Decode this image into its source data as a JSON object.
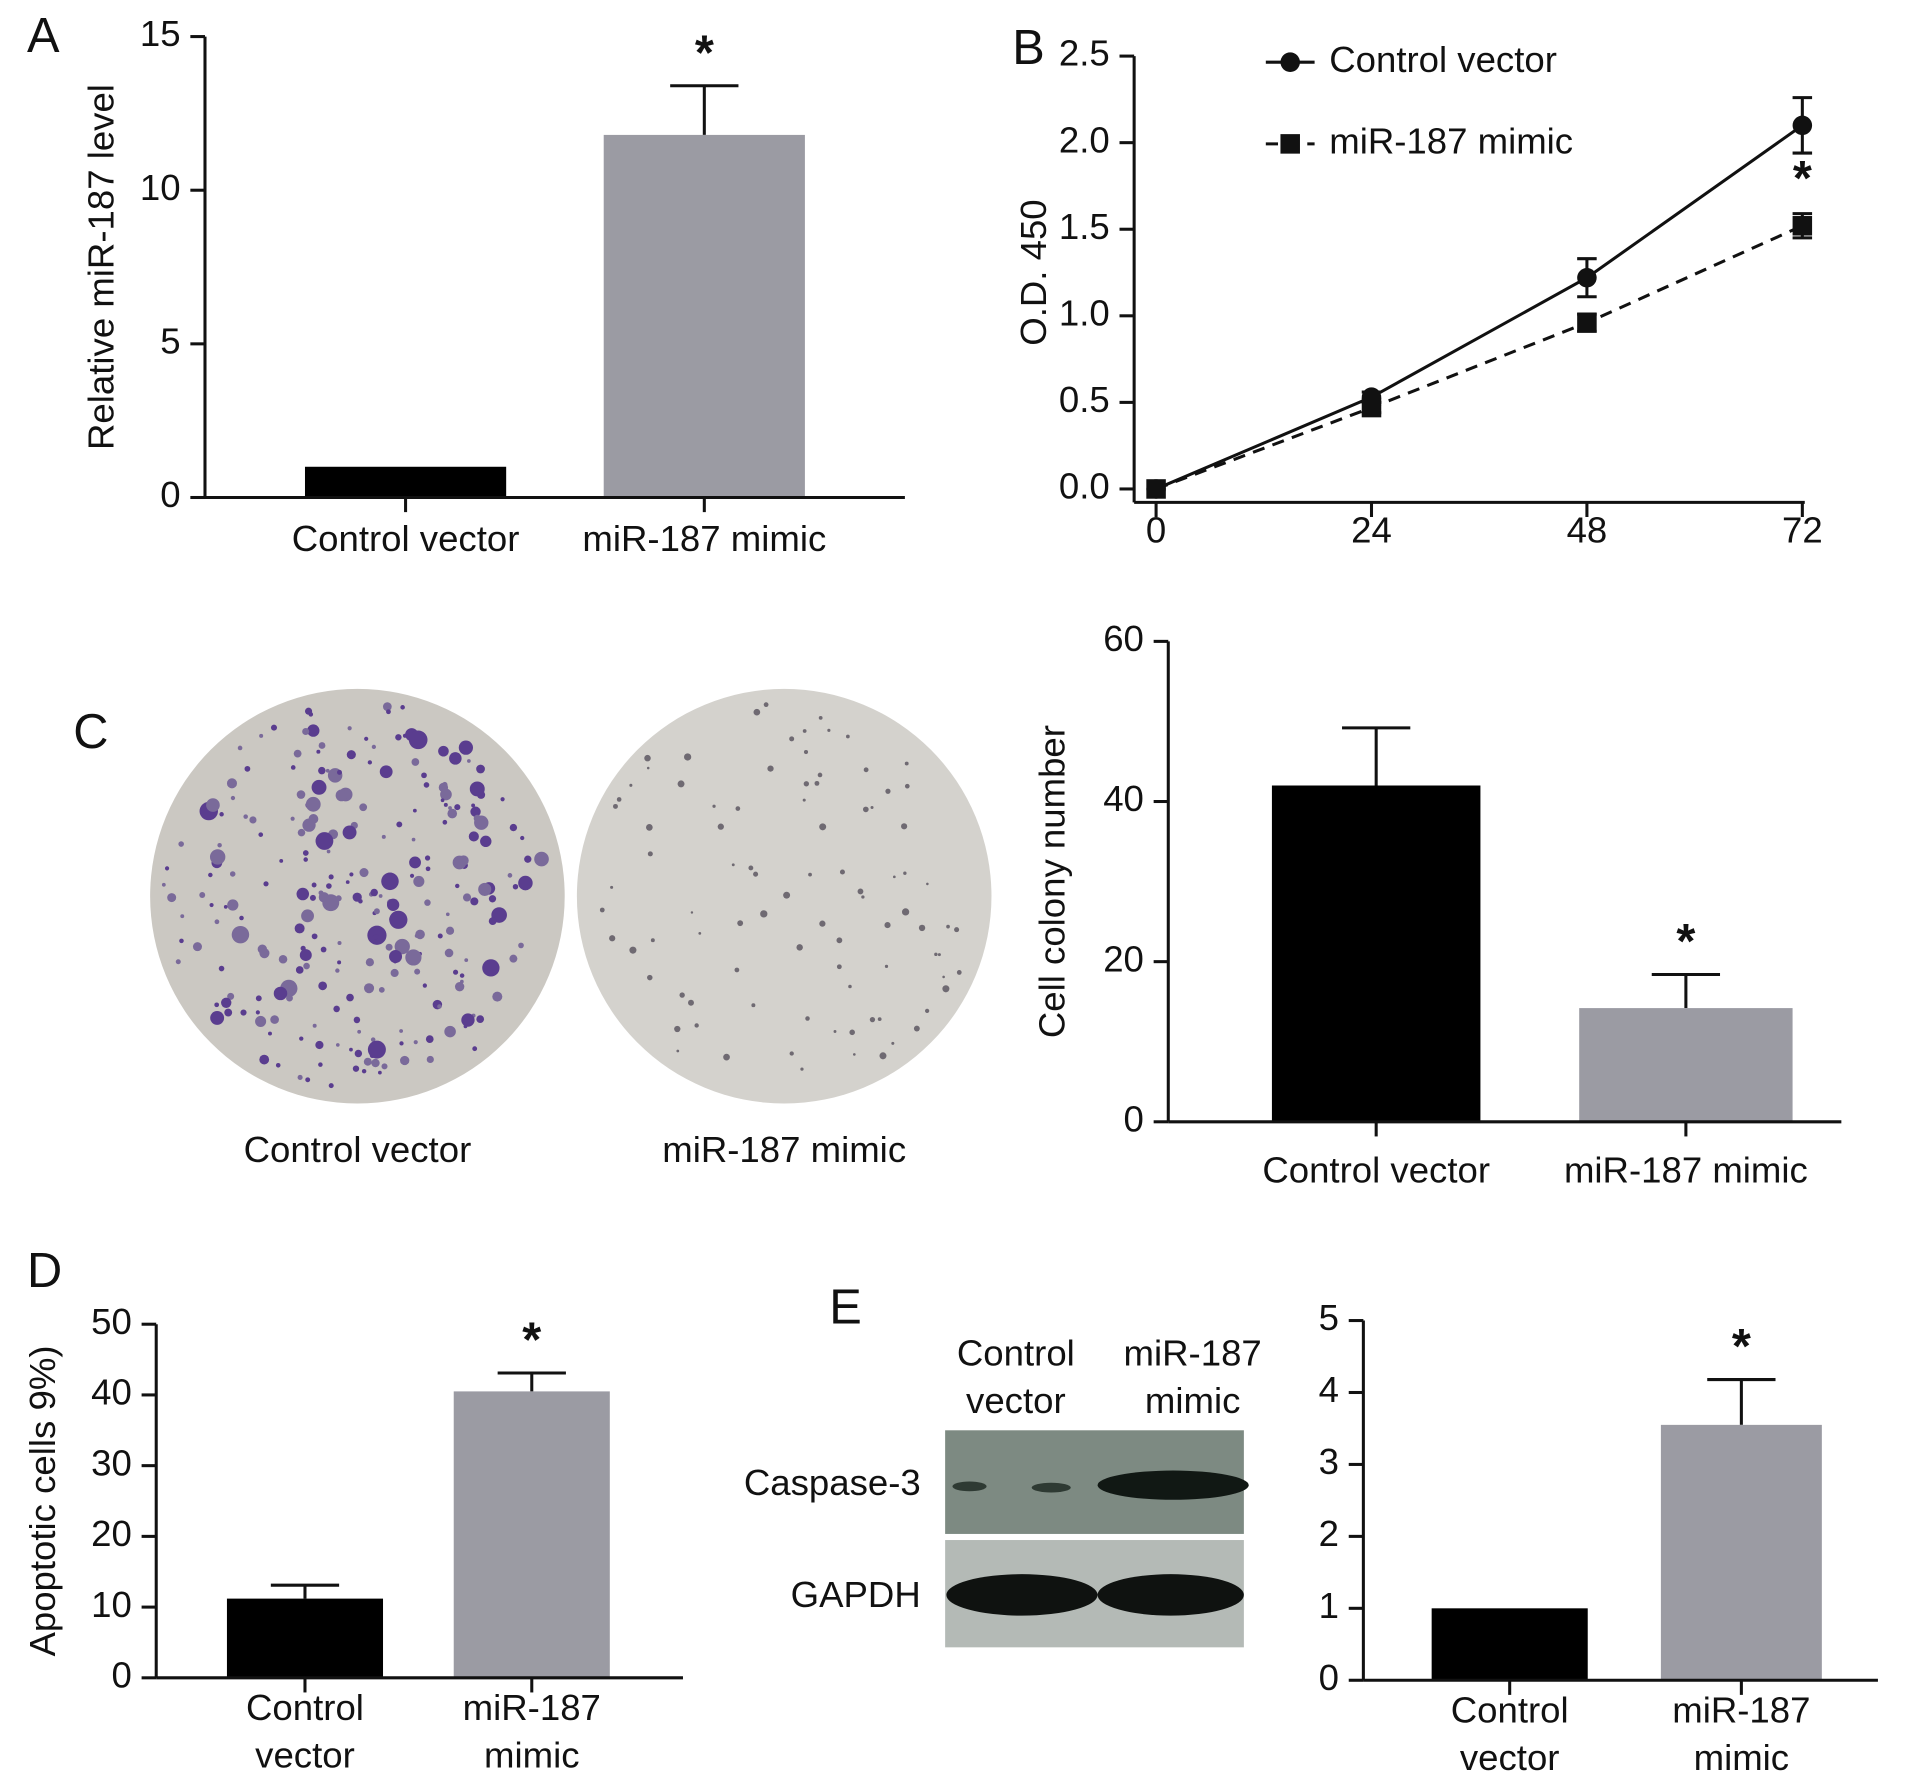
{
  "chart_data": [
    {
      "type": "bar",
      "panel": "A",
      "ylabel": "Relative miR-187 level",
      "categories": [
        "Control vector",
        "miR-187 mimic"
      ],
      "values": [
        1,
        11.8
      ],
      "errors": [
        0,
        1.6
      ],
      "colors": [
        "#000000",
        "#9b9ba3"
      ],
      "ylim": [
        0,
        15
      ],
      "yticks": [
        0,
        5,
        10,
        15
      ],
      "annotation": "*"
    },
    {
      "type": "line",
      "panel": "B",
      "ylabel": "O.D. 450",
      "x": [
        0,
        24,
        48,
        72
      ],
      "xlim": [
        0,
        72
      ],
      "xticks": [
        0,
        24,
        48,
        72
      ],
      "ylim": [
        0,
        2.5
      ],
      "yticks": [
        {
          "value": 0,
          "label": "0.0"
        },
        0.5,
        {
          "value": 1,
          "label": "1.0"
        },
        1.5,
        {
          "value": 2,
          "label": "2.0"
        },
        2.5
      ],
      "series": [
        {
          "name": "Control vector",
          "color": "#111111",
          "marker": "circle",
          "line_style": "solid",
          "values": [
            0,
            0.53,
            1.22,
            2.1
          ],
          "errors": [
            0,
            0.03,
            0.11,
            0.16
          ]
        },
        {
          "name": "miR-187 mimic",
          "color": "#111111",
          "marker": "square",
          "line_style": "dashed",
          "values": [
            0,
            0.47,
            0.96,
            1.52
          ],
          "errors": [
            0,
            0.03,
            0.05,
            0.07
          ]
        }
      ],
      "legend": "upper left",
      "annotation": "*"
    },
    {
      "type": "bar",
      "ylabel": "Cell colony number",
      "categories": [
        "Control vector",
        "miR-187 mimic"
      ],
      "values": [
        42,
        14.2
      ],
      "errors": [
        7.2,
        4.2
      ],
      "colors": [
        "#000000",
        "#9b9ba3"
      ],
      "ylim": [
        0,
        60
      ],
      "yticks": [
        0,
        20,
        40,
        60
      ],
      "annotation": "*"
    },
    {
      "type": "bar",
      "panel": "D",
      "ylabel": "Apoptotic cells 9%)",
      "categories": [
        "Control\nvector",
        "miR-187\nmimic"
      ],
      "values": [
        11.2,
        40.5
      ],
      "errors": [
        1.9,
        2.6
      ],
      "colors": [
        "#000000",
        "#9b9ba3"
      ],
      "ylim": [
        0,
        50
      ],
      "yticks": [
        0,
        10,
        20,
        30,
        40,
        50
      ],
      "annotation": "*"
    },
    {
      "type": "bar",
      "categories": [
        "Control\nvector",
        "miR-187\nmimic"
      ],
      "values": [
        1,
        3.55
      ],
      "errors": [
        0,
        0.63
      ],
      "colors": [
        "#000000",
        "#9b9ba3"
      ],
      "ylim": [
        0,
        5
      ],
      "yticks": [
        0,
        1,
        2,
        3,
        4,
        5
      ],
      "annotation": "*"
    }
  ],
  "plates": {
    "panel": "C",
    "captions": [
      "Control vector",
      "miR-187 mimic"
    ]
  },
  "blot": {
    "panel": "E",
    "columns": [
      "Control\nvector",
      "miR-187\nmimic"
    ],
    "rows": [
      "Caspase-3",
      "GAPDH"
    ]
  }
}
